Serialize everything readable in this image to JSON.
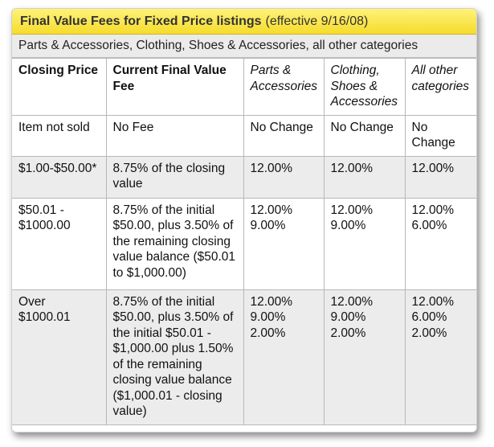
{
  "title": {
    "bold": "Final Value Fees for Fixed Price listings",
    "effective": "(effective 9/16/08)"
  },
  "categories_line": "Parts & Accessories, Clothing, Shoes & Accessories, all other categories",
  "columns": {
    "closing_price": "Closing Price",
    "current_fee": "Current Final Value Fee",
    "parts": "Parts & Accessories",
    "clothing": "Clothing, Shoes & Accessories",
    "other": "All other categories"
  },
  "rows": [
    {
      "price": "Item not sold",
      "current": "No Fee",
      "parts": [
        "No Change"
      ],
      "clothing": [
        "No Change"
      ],
      "other": [
        "No Change"
      ]
    },
    {
      "price": "$1.00-$50.00*",
      "current": "8.75% of the closing value",
      "parts": [
        "12.00%"
      ],
      "clothing": [
        "12.00%"
      ],
      "other": [
        "12.00%"
      ]
    },
    {
      "price": "$50.01 - $1000.00",
      "current": "8.75% of the initial $50.00, plus 3.50% of the remaining closing value balance ($50.01 to $1,000.00)",
      "parts": [
        "12.00%",
        "9.00%"
      ],
      "clothing": [
        "12.00%",
        "9.00%"
      ],
      "other": [
        "12.00%",
        "6.00%"
      ]
    },
    {
      "price": "Over $1000.01",
      "current": "8.75% of the initial $50.00, plus 3.50% of the initial $50.01 - $1,000.00 plus 1.50% of the remaining closing value balance ($1,000.01 - closing value)",
      "parts": [
        "12.00%",
        "9.00%",
        "2.00%"
      ],
      "clothing": [
        "12.00%",
        "9.00%",
        "2.00%"
      ],
      "other": [
        "12.00%",
        "6.00%",
        "2.00%"
      ]
    }
  ]
}
